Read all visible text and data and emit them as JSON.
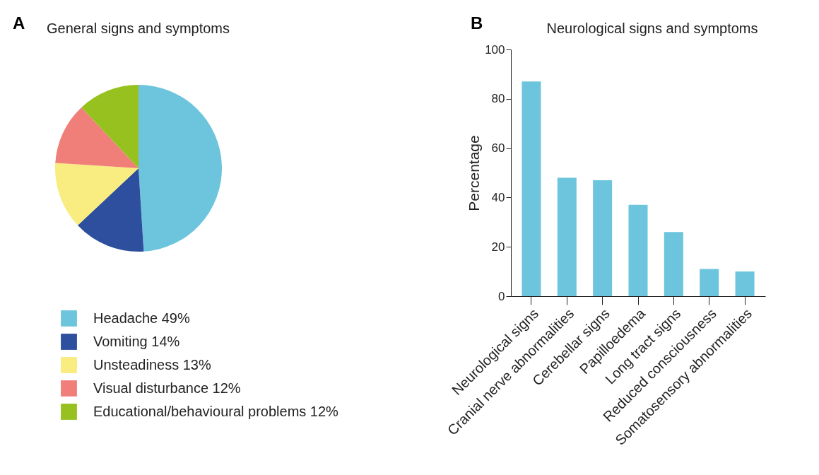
{
  "chart_data": [
    {
      "type": "pie",
      "title": "General signs and symptoms",
      "annotations": [
        "A"
      ],
      "categories": [
        "Headache",
        "Vomiting",
        "Unsteadiness",
        "Visual disturbance",
        "Educational/behavioural problems"
      ],
      "values": [
        49,
        14,
        13,
        12,
        12
      ],
      "value_labels": [
        "49%",
        "14%",
        "13%",
        "12%",
        "12%"
      ],
      "colors": [
        "#6cc5dc",
        "#2e4e9e",
        "#f9ec80",
        "#f07f79",
        "#97c11f"
      ],
      "legend": "bottom"
    },
    {
      "type": "bar",
      "title": "Neurological signs and symptoms",
      "annotations": [
        "B"
      ],
      "ylabel": "Percentage",
      "categories": [
        "Neurological signs",
        "Cranial nerve abnormalities",
        "Cerebellar signs",
        "Papilloedema",
        "Long tract signs",
        "Reduced consciousness",
        "Somatosensory abnormalities"
      ],
      "values": [
        87,
        48,
        47,
        37,
        26,
        11,
        10
      ],
      "color": "#6cc5dc",
      "ylim": [
        0,
        100
      ],
      "yticks": [
        0,
        20,
        40,
        60,
        80,
        100
      ],
      "grid": false
    }
  ]
}
